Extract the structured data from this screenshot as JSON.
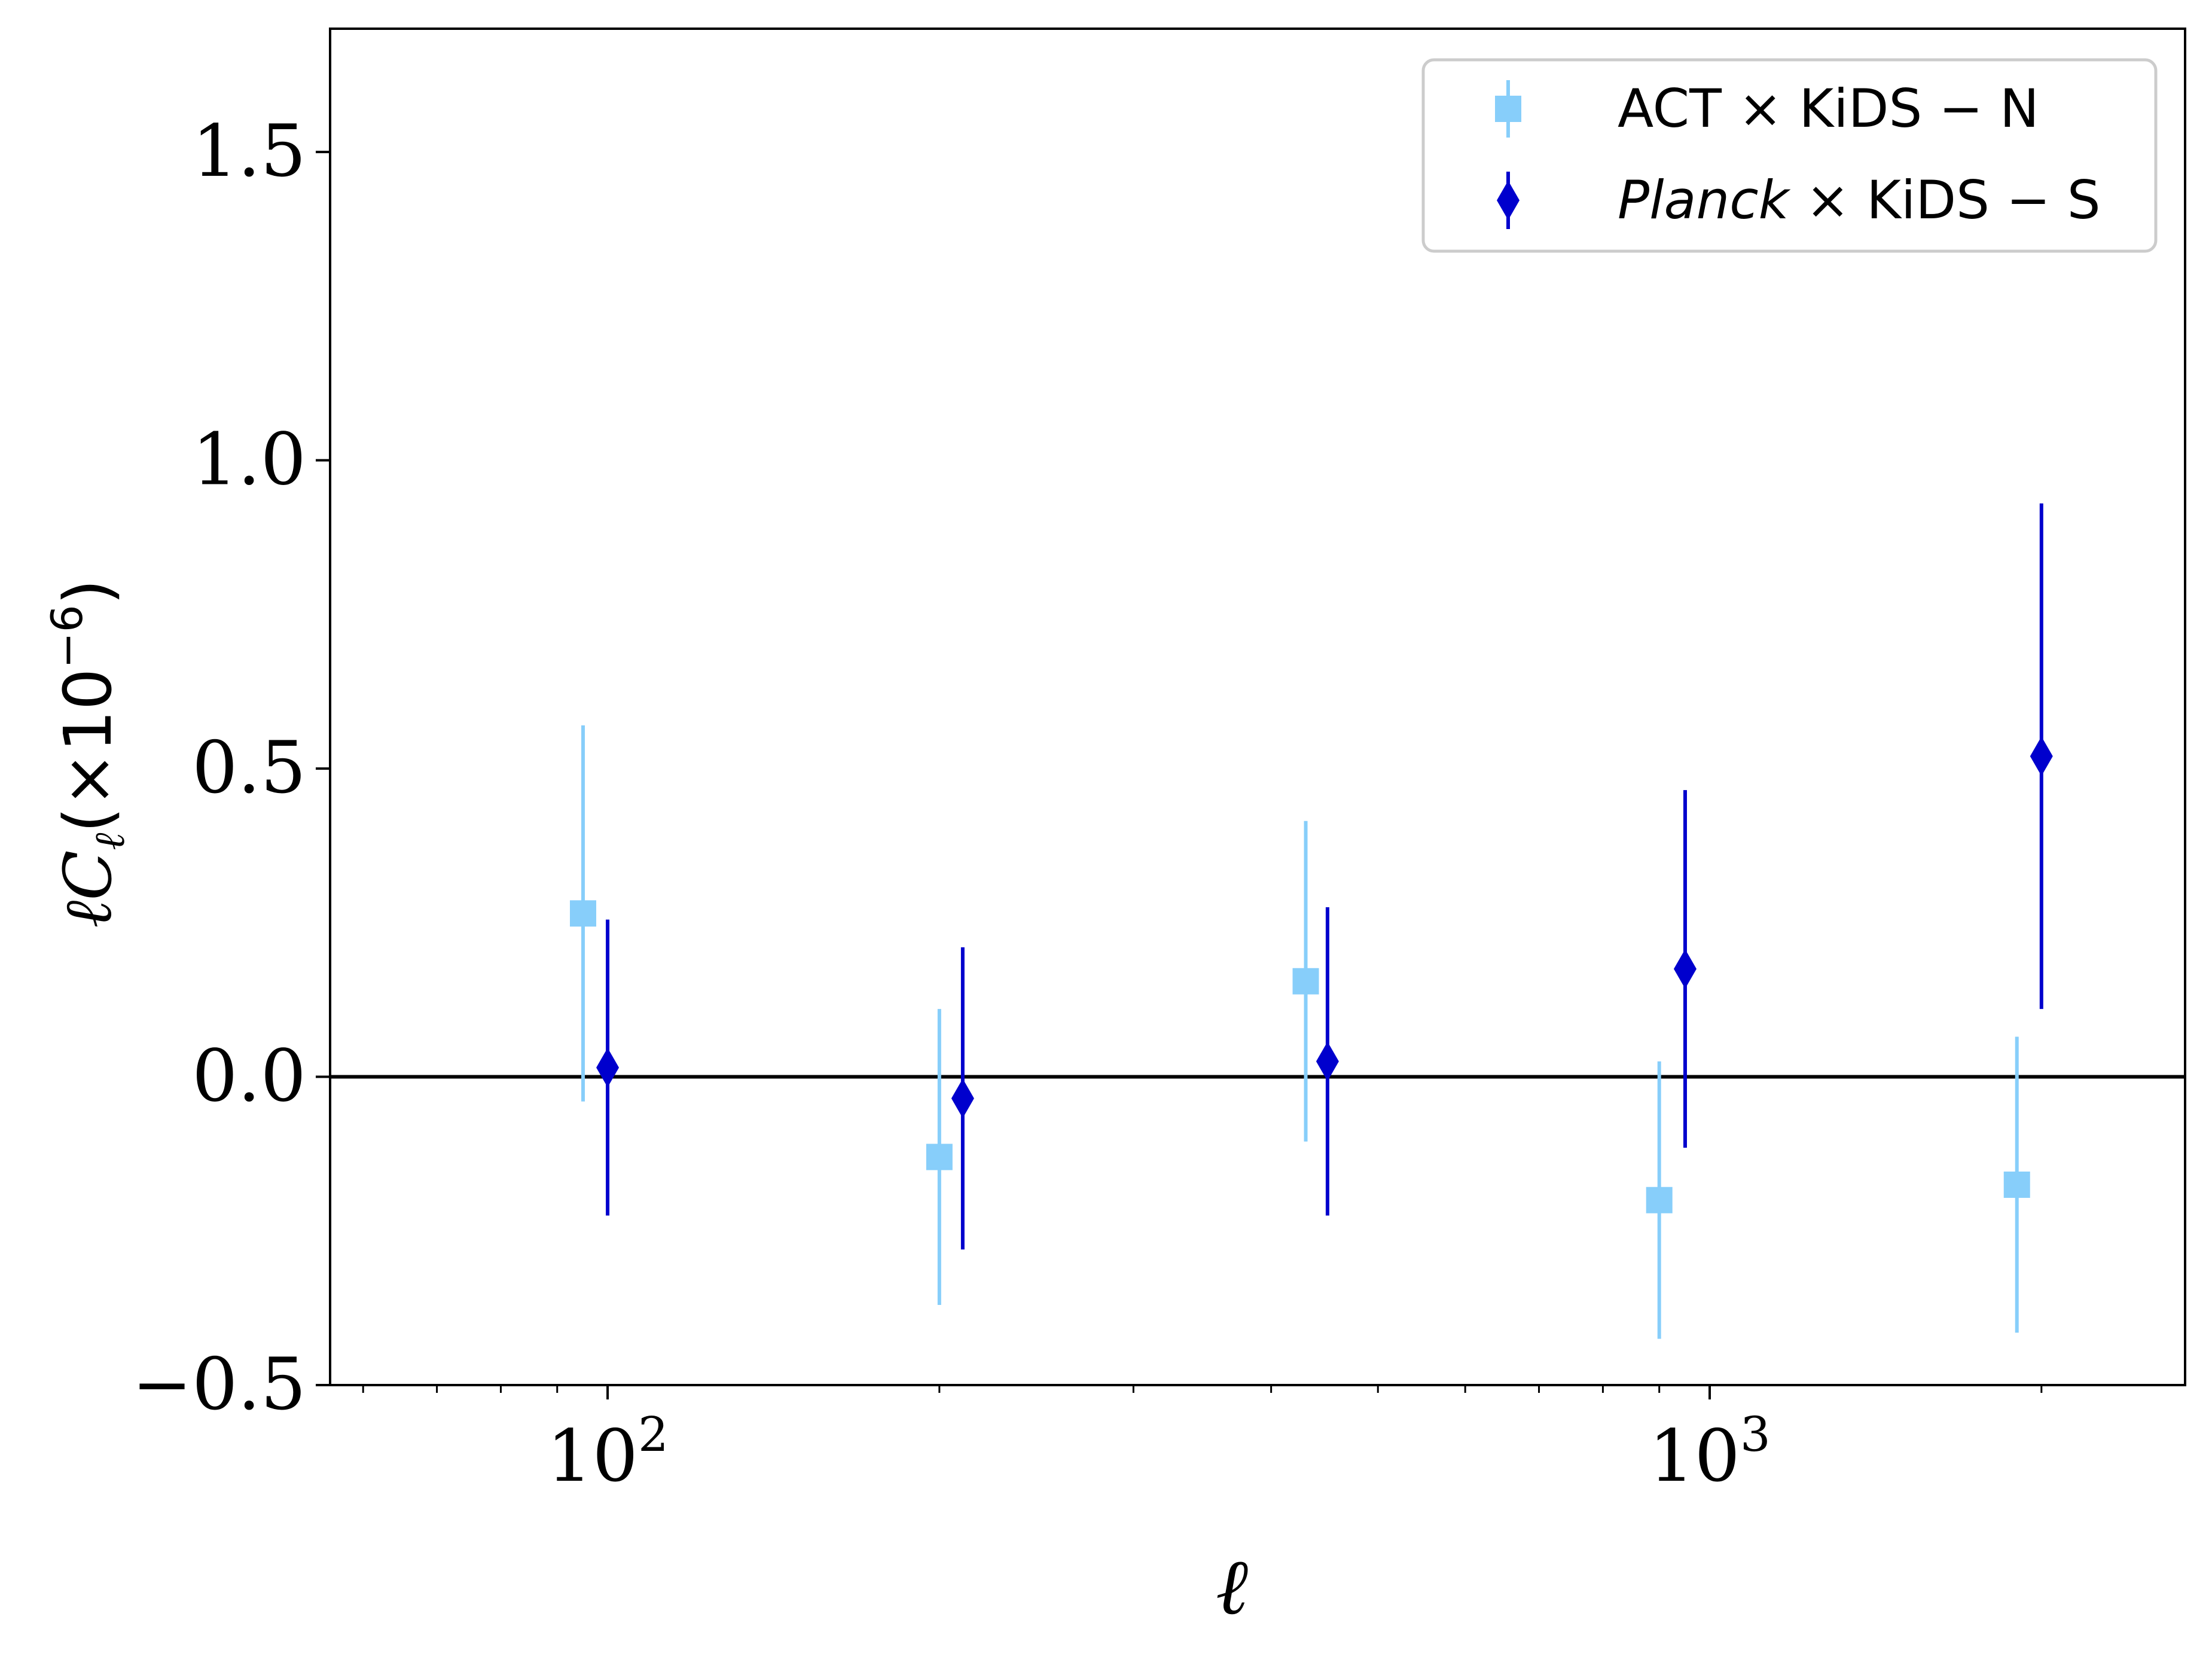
{
  "chart_data": {
    "type": "scatter",
    "xlabel": "ℓ",
    "ylabel_main": "ℓC",
    "ylabel_sub": "ℓ",
    "ylabel_suffix": "(×10",
    "ylabel_exp": "−6",
    "ylabel_close": ")",
    "xscale": "log",
    "xlim": [
      56,
      2700
    ],
    "ylim": [
      -0.5,
      1.7
    ],
    "x_ticks": [
      {
        "value": 100,
        "base": "10",
        "exp": "2"
      },
      {
        "value": 1000,
        "base": "10",
        "exp": "3"
      }
    ],
    "y_ticks": [
      {
        "value": -0.5,
        "label": "−0.5"
      },
      {
        "value": 0.0,
        "label": "0.0"
      },
      {
        "value": 0.5,
        "label": "0.5"
      },
      {
        "value": 1.0,
        "label": "1.0"
      },
      {
        "value": 1.5,
        "label": "1.5"
      }
    ],
    "reference_line_y": 0.0,
    "grid": false,
    "legend_position": "top-right",
    "series": [
      {
        "name": "ACT × KiDS − N",
        "name_parts": {
          "italic": "",
          "rest": "ACT × KiDS − N"
        },
        "marker": "square",
        "color": "#87CEFA",
        "points": [
          {
            "x": 95,
            "y": 0.265,
            "yerr": 0.305
          },
          {
            "x": 200,
            "y": -0.13,
            "yerr": 0.24
          },
          {
            "x": 430,
            "y": 0.155,
            "yerr": 0.26
          },
          {
            "x": 900,
            "y": -0.2,
            "yerr": 0.225
          },
          {
            "x": 1900,
            "y": -0.175,
            "yerr": 0.24
          }
        ]
      },
      {
        "name": "Planck × KiDS − S",
        "name_parts": {
          "italic": "Planck",
          "rest": " × KiDS − S"
        },
        "marker": "diamond",
        "color": "#0000CD",
        "points": [
          {
            "x": 100,
            "y": 0.015,
            "yerr": 0.24
          },
          {
            "x": 210,
            "y": -0.035,
            "yerr": 0.245
          },
          {
            "x": 450,
            "y": 0.025,
            "yerr": 0.25
          },
          {
            "x": 950,
            "y": 0.175,
            "yerr": 0.29
          },
          {
            "x": 2000,
            "y": 0.52,
            "yerr": 0.41
          }
        ]
      }
    ]
  }
}
